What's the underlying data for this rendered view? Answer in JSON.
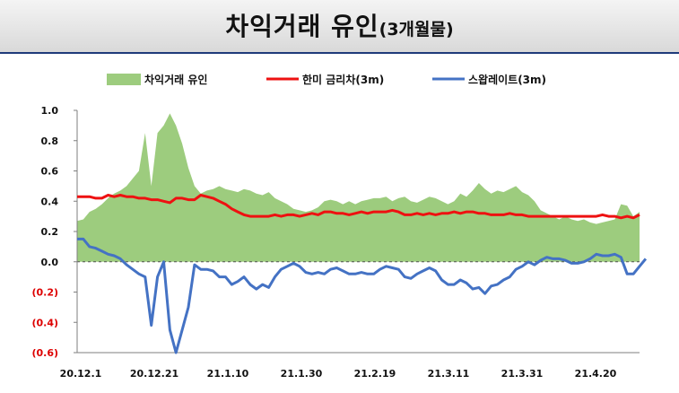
{
  "header": {
    "title": "차익거래 유인",
    "title_suffix": "(3개월물)"
  },
  "chart_data": {
    "type": "area+line",
    "ylim": [
      -0.6,
      1.0
    ],
    "yticks": [
      {
        "value": 1.0,
        "label": "1.0"
      },
      {
        "value": 0.8,
        "label": "0.8"
      },
      {
        "value": 0.6,
        "label": "0.6"
      },
      {
        "value": 0.4,
        "label": "0.4"
      },
      {
        "value": 0.2,
        "label": "0.2"
      },
      {
        "value": 0.0,
        "label": "0.0"
      },
      {
        "value": -0.2,
        "label": "(0.2)"
      },
      {
        "value": -0.4,
        "label": "(0.4)"
      },
      {
        "value": -0.6,
        "label": "(0.6)"
      }
    ],
    "xlabels": [
      "20.12.1",
      "20.12.21",
      "21.1.10",
      "21.1.30",
      "21.2.19",
      "21.3.11",
      "21.3.31",
      "21.4.20"
    ],
    "zero_line": "dashed",
    "colors": {
      "area": "#9dcc7e",
      "red": "#ee1111",
      "blue": "#4472c4",
      "negative_label": "#dd0000"
    },
    "series": [
      {
        "name": "차익거래 유인",
        "type": "area",
        "values": [
          0.27,
          0.28,
          0.33,
          0.35,
          0.38,
          0.42,
          0.45,
          0.47,
          0.5,
          0.55,
          0.6,
          0.85,
          0.5,
          0.85,
          0.9,
          0.98,
          0.9,
          0.78,
          0.62,
          0.5,
          0.45,
          0.47,
          0.48,
          0.5,
          0.48,
          0.47,
          0.46,
          0.48,
          0.47,
          0.45,
          0.44,
          0.46,
          0.42,
          0.4,
          0.38,
          0.35,
          0.34,
          0.33,
          0.34,
          0.36,
          0.4,
          0.41,
          0.4,
          0.38,
          0.4,
          0.38,
          0.4,
          0.41,
          0.42,
          0.42,
          0.43,
          0.4,
          0.42,
          0.43,
          0.4,
          0.39,
          0.41,
          0.43,
          0.42,
          0.4,
          0.38,
          0.4,
          0.45,
          0.43,
          0.47,
          0.52,
          0.48,
          0.45,
          0.47,
          0.46,
          0.48,
          0.5,
          0.46,
          0.44,
          0.4,
          0.34,
          0.32,
          0.3,
          0.28,
          0.3,
          0.28,
          0.27,
          0.28,
          0.26,
          0.25,
          0.26,
          0.27,
          0.28,
          0.38,
          0.37,
          0.3,
          0.33
        ]
      },
      {
        "name": "한미 금리차(3m)",
        "type": "line",
        "values": [
          0.43,
          0.43,
          0.43,
          0.42,
          0.42,
          0.44,
          0.43,
          0.44,
          0.43,
          0.43,
          0.42,
          0.42,
          0.41,
          0.41,
          0.4,
          0.39,
          0.42,
          0.42,
          0.41,
          0.41,
          0.44,
          0.43,
          0.42,
          0.4,
          0.38,
          0.35,
          0.33,
          0.31,
          0.3,
          0.3,
          0.3,
          0.3,
          0.31,
          0.3,
          0.31,
          0.31,
          0.3,
          0.31,
          0.32,
          0.31,
          0.33,
          0.33,
          0.32,
          0.32,
          0.31,
          0.32,
          0.33,
          0.32,
          0.33,
          0.33,
          0.33,
          0.34,
          0.33,
          0.31,
          0.31,
          0.32,
          0.31,
          0.32,
          0.31,
          0.32,
          0.32,
          0.33,
          0.32,
          0.33,
          0.33,
          0.32,
          0.32,
          0.31,
          0.31,
          0.31,
          0.32,
          0.31,
          0.31,
          0.3,
          0.3,
          0.3,
          0.3,
          0.3,
          0.3,
          0.3,
          0.3,
          0.3,
          0.3,
          0.3,
          0.3,
          0.31,
          0.3,
          0.3,
          0.29,
          0.3,
          0.29,
          0.31
        ]
      },
      {
        "name": "스왑레이트(3m)",
        "type": "line",
        "values": [
          0.15,
          0.15,
          0.1,
          0.09,
          0.07,
          0.05,
          0.04,
          0.02,
          -0.02,
          -0.05,
          -0.08,
          -0.1,
          -0.42,
          -0.1,
          0.0,
          -0.45,
          -0.6,
          -0.45,
          -0.3,
          -0.02,
          -0.05,
          -0.05,
          -0.06,
          -0.1,
          -0.1,
          -0.15,
          -0.13,
          -0.1,
          -0.15,
          -0.18,
          -0.15,
          -0.17,
          -0.1,
          -0.05,
          -0.03,
          -0.01,
          -0.03,
          -0.07,
          -0.08,
          -0.07,
          -0.08,
          -0.05,
          -0.04,
          -0.06,
          -0.08,
          -0.08,
          -0.07,
          -0.08,
          -0.08,
          -0.05,
          -0.03,
          -0.04,
          -0.05,
          -0.1,
          -0.11,
          -0.08,
          -0.06,
          -0.04,
          -0.06,
          -0.12,
          -0.15,
          -0.15,
          -0.12,
          -0.14,
          -0.18,
          -0.17,
          -0.21,
          -0.16,
          -0.15,
          -0.12,
          -0.1,
          -0.05,
          -0.03,
          0.0,
          -0.02,
          0.01,
          0.03,
          0.02,
          0.02,
          0.01,
          -0.01,
          -0.01,
          0.0,
          0.02,
          0.05,
          0.04,
          0.04,
          0.05,
          0.03,
          -0.08,
          -0.08,
          -0.03,
          0.02
        ]
      }
    ]
  }
}
